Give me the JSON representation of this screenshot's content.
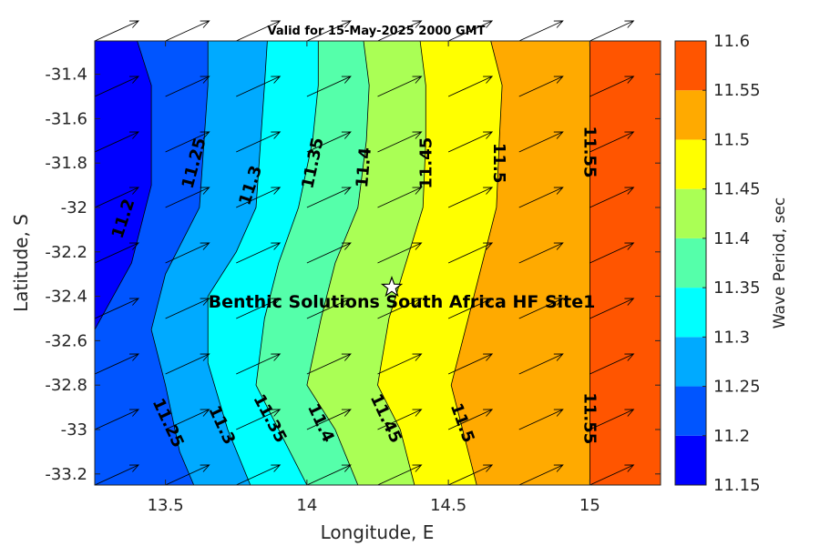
{
  "chart_data": {
    "type": "contour",
    "title": "Valid for 15-May-2025 2000 GMT",
    "xlabel": "Longitude, E",
    "ylabel": "Latitude, S",
    "xlim": [
      13.25,
      15.25
    ],
    "ylim": [
      -33.25,
      -31.25
    ],
    "xticks": [
      13.5,
      14,
      14.5,
      15
    ],
    "xtick_labels": [
      "13.5",
      "14",
      "14.5",
      "15"
    ],
    "yticks": [
      -31.4,
      -31.6,
      -31.8,
      -32,
      -32.2,
      -32.4,
      -32.6,
      -32.8,
      -33,
      -33.2
    ],
    "ytick_labels": [
      "-31.4",
      "-31.6",
      "-31.8",
      "-32",
      "-32.2",
      "-32.4",
      "-32.6",
      "-32.8",
      "-33",
      "-33.2"
    ],
    "colorbar": {
      "label": "Wave Period, sec",
      "range": [
        11.15,
        11.6
      ],
      "ticks": [
        "11.6",
        "11.55",
        "11.5",
        "11.45",
        "11.4",
        "11.35",
        "11.3",
        "11.25",
        "11.2",
        "11.15"
      ],
      "tick_values": [
        11.6,
        11.55,
        11.5,
        11.45,
        11.4,
        11.35,
        11.3,
        11.25,
        11.2,
        11.15
      ],
      "band_colors": [
        "#0000ff",
        "#0055ff",
        "#00aaff",
        "#00ffff",
        "#55ffaa",
        "#aaff55",
        "#ffff00",
        "#ffaa00",
        "#ff5500"
      ]
    },
    "contour_levels": [
      11.2,
      11.25,
      11.3,
      11.35,
      11.4,
      11.45,
      11.5,
      11.55
    ],
    "contour_lines": [
      {
        "level": 11.2,
        "points": [
          [
            13.4,
            -31.25
          ],
          [
            13.45,
            -31.45
          ],
          [
            13.45,
            -31.9
          ],
          [
            13.43,
            -32.0
          ],
          [
            13.38,
            -32.25
          ],
          [
            13.25,
            -32.55
          ]
        ]
      },
      {
        "level": 11.25,
        "points": [
          [
            13.65,
            -31.25
          ],
          [
            13.65,
            -31.45
          ],
          [
            13.62,
            -32.0
          ],
          [
            13.5,
            -32.3
          ],
          [
            13.45,
            -32.55
          ],
          [
            13.5,
            -32.8
          ],
          [
            13.55,
            -33.1
          ],
          [
            13.6,
            -33.25
          ]
        ]
      },
      {
        "level": 11.3,
        "points": [
          [
            13.86,
            -31.25
          ],
          [
            13.85,
            -31.45
          ],
          [
            13.82,
            -32.0
          ],
          [
            13.75,
            -32.2
          ],
          [
            13.65,
            -32.4
          ],
          [
            13.65,
            -32.7
          ],
          [
            13.72,
            -33.0
          ],
          [
            13.8,
            -33.25
          ]
        ]
      },
      {
        "level": 11.35,
        "points": [
          [
            14.04,
            -31.25
          ],
          [
            14.04,
            -31.45
          ],
          [
            14.02,
            -31.7
          ],
          [
            13.97,
            -32.0
          ],
          [
            13.9,
            -32.25
          ],
          [
            13.85,
            -32.5
          ],
          [
            13.82,
            -32.8
          ],
          [
            13.9,
            -33.0
          ],
          [
            14.0,
            -33.25
          ]
        ]
      },
      {
        "level": 11.4,
        "points": [
          [
            14.2,
            -31.25
          ],
          [
            14.22,
            -31.45
          ],
          [
            14.21,
            -31.7
          ],
          [
            14.18,
            -32.0
          ],
          [
            14.1,
            -32.25
          ],
          [
            14.05,
            -32.5
          ],
          [
            14.0,
            -32.8
          ],
          [
            14.1,
            -33.0
          ],
          [
            14.18,
            -33.25
          ]
        ]
      },
      {
        "level": 11.45,
        "points": [
          [
            14.4,
            -31.25
          ],
          [
            14.42,
            -31.45
          ],
          [
            14.42,
            -31.7
          ],
          [
            14.41,
            -32.0
          ],
          [
            14.35,
            -32.25
          ],
          [
            14.29,
            -32.5
          ],
          [
            14.25,
            -32.8
          ],
          [
            14.33,
            -33.0
          ],
          [
            14.38,
            -33.25
          ]
        ]
      },
      {
        "level": 11.5,
        "points": [
          [
            14.65,
            -31.25
          ],
          [
            14.69,
            -31.45
          ],
          [
            14.68,
            -31.7
          ],
          [
            14.67,
            -32.0
          ],
          [
            14.62,
            -32.25
          ],
          [
            14.57,
            -32.5
          ],
          [
            14.51,
            -32.8
          ],
          [
            14.55,
            -33.0
          ],
          [
            14.6,
            -33.25
          ]
        ]
      },
      {
        "level": 11.55,
        "points": [
          [
            15.0,
            -31.25
          ],
          [
            15.0,
            -33.25
          ]
        ]
      }
    ],
    "contour_labels": [
      {
        "text": "11.2",
        "lon": 13.35,
        "lat": -32.05,
        "rot": -72
      },
      {
        "text": "11.25",
        "lon": 13.6,
        "lat": -31.8,
        "rot": -75
      },
      {
        "text": "11.3",
        "lon": 13.8,
        "lat": -31.9,
        "rot": -72
      },
      {
        "text": "11.35",
        "lon": 14.02,
        "lat": -31.8,
        "rot": -78
      },
      {
        "text": "11.4",
        "lon": 14.2,
        "lat": -31.82,
        "rot": -85
      },
      {
        "text": "11.45",
        "lon": 14.42,
        "lat": -31.8,
        "rot": -90
      },
      {
        "text": "11.5",
        "lon": 14.68,
        "lat": -31.8,
        "rot": 90
      },
      {
        "text": "11.55",
        "lon": 15.0,
        "lat": -31.75,
        "rot": 90
      },
      {
        "text": "11.25",
        "lon": 13.51,
        "lat": -32.97,
        "rot": 65
      },
      {
        "text": "11.3",
        "lon": 13.7,
        "lat": -32.98,
        "rot": 65
      },
      {
        "text": "11.35",
        "lon": 13.87,
        "lat": -32.95,
        "rot": 62
      },
      {
        "text": "11.4",
        "lon": 14.05,
        "lat": -32.97,
        "rot": 65
      },
      {
        "text": "11.45",
        "lon": 14.28,
        "lat": -32.95,
        "rot": 65
      },
      {
        "text": "11.5",
        "lon": 14.55,
        "lat": -32.97,
        "rot": 70
      },
      {
        "text": "11.55",
        "lon": 15.0,
        "lat": -32.95,
        "rot": 90
      }
    ],
    "arrows": {
      "lon": [
        13.25,
        13.5,
        13.75,
        14.0,
        14.25,
        14.5,
        14.75,
        15.0
      ],
      "lat": [
        -33.25,
        -33.0,
        -32.75,
        -32.5,
        -32.25,
        -32.0,
        -31.75,
        -31.5,
        -31.25
      ],
      "direction": "toward northeast"
    },
    "site": {
      "label": "Benthic Solutions South Africa HF Site1",
      "lon": 14.3,
      "lat": -32.36,
      "marker": "star"
    }
  }
}
